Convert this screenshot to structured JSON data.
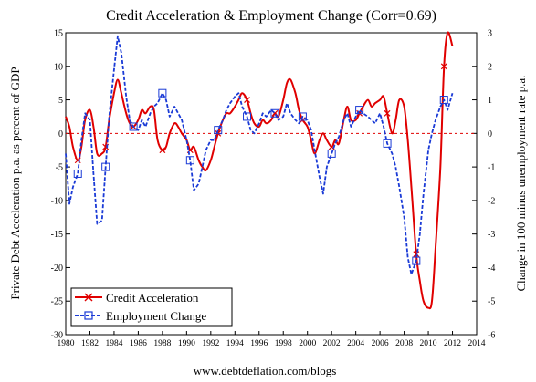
{
  "chart_data": {
    "type": "line",
    "title": "Credit Acceleration & Employment Change (Corr=0.69)",
    "ylabel_left": "Private Debt Acceleration p.a. as percent of GDP",
    "ylabel_right": "Change in 100 minus unemployment rate p.a.",
    "footer": "www.debtdeflation.com/blogs",
    "xlim": [
      1980,
      2014
    ],
    "ylim_left": [
      -30,
      15
    ],
    "ylim_right": [
      -6,
      3
    ],
    "x_ticks": [
      "1980",
      "1982",
      "1984",
      "1986",
      "1988",
      "1990",
      "1992",
      "1994",
      "1996",
      "1998",
      "2000",
      "2002",
      "2004",
      "2006",
      "2008",
      "2010",
      "2012",
      "2014"
    ],
    "y_ticks_left": [
      "15",
      "10",
      "5",
      "0",
      "-5",
      "-10",
      "-15",
      "-20",
      "-25",
      "-30"
    ],
    "y_ticks_right": [
      "3",
      "2",
      "1",
      "0",
      "-1",
      "-2",
      "-3",
      "-4",
      "-5",
      "-6"
    ],
    "grid": false,
    "zero_line": true,
    "legend_position": "bottom-left",
    "series": [
      {
        "name": "Credit Acceleration",
        "axis": "left",
        "color": "#e00000",
        "marker": "x",
        "x": [
          1980.0,
          1980.3,
          1980.6,
          1981.0,
          1981.3,
          1981.6,
          1982.0,
          1982.3,
          1982.6,
          1983.0,
          1983.3,
          1983.6,
          1984.0,
          1984.3,
          1984.6,
          1985.0,
          1985.3,
          1985.6,
          1986.0,
          1986.3,
          1986.6,
          1987.0,
          1987.3,
          1987.6,
          1988.0,
          1988.3,
          1988.6,
          1989.0,
          1989.3,
          1989.6,
          1990.0,
          1990.3,
          1990.6,
          1991.0,
          1991.3,
          1991.6,
          1992.0,
          1992.3,
          1992.6,
          1993.0,
          1993.3,
          1993.6,
          1994.0,
          1994.3,
          1994.6,
          1995.0,
          1995.3,
          1995.6,
          1996.0,
          1996.3,
          1996.6,
          1997.0,
          1997.3,
          1997.6,
          1998.0,
          1998.3,
          1998.6,
          1999.0,
          1999.3,
          1999.6,
          2000.0,
          2000.3,
          2000.6,
          2001.0,
          2001.3,
          2001.6,
          2002.0,
          2002.3,
          2002.6,
          2003.0,
          2003.3,
          2003.6,
          2004.0,
          2004.3,
          2004.6,
          2005.0,
          2005.3,
          2005.6,
          2006.0,
          2006.3,
          2006.6,
          2007.0,
          2007.3,
          2007.6,
          2008.0,
          2008.3,
          2008.6,
          2009.0,
          2009.3,
          2009.6,
          2010.0,
          2010.3,
          2010.6,
          2011.0,
          2011.3,
          2011.6,
          2012.0
        ],
        "y": [
          2.5,
          1.0,
          -2.0,
          -4.0,
          -2.0,
          2.0,
          3.5,
          1.0,
          -3.0,
          -3.0,
          -2.0,
          2.0,
          6.0,
          8.0,
          6.0,
          3.0,
          1.5,
          1.0,
          2.0,
          3.5,
          3.0,
          4.0,
          3.5,
          -1.0,
          -2.5,
          -2.0,
          0.0,
          1.5,
          1.0,
          0.0,
          -1.0,
          -2.5,
          -2.0,
          -4.0,
          -5.0,
          -5.5,
          -4.0,
          -2.0,
          0.0,
          2.0,
          3.0,
          3.0,
          4.0,
          5.0,
          6.0,
          5.0,
          3.0,
          1.5,
          1.0,
          2.0,
          1.5,
          2.0,
          3.0,
          2.5,
          5.0,
          7.5,
          8.0,
          6.0,
          3.5,
          2.0,
          1.0,
          -1.0,
          -3.0,
          -1.0,
          0.0,
          -1.0,
          -2.0,
          -1.0,
          -1.5,
          2.0,
          4.0,
          2.0,
          2.0,
          3.0,
          4.0,
          5.0,
          4.0,
          4.5,
          5.0,
          5.5,
          3.0,
          0.0,
          2.0,
          5.0,
          4.0,
          -1.0,
          -8.0,
          -18.0,
          -22.0,
          -25.0,
          -26.0,
          -25.0,
          -17.0,
          -5.0,
          10.0,
          15.0,
          13.0
        ],
        "smooth": true
      },
      {
        "name": "Employment Change",
        "axis": "right",
        "color": "#1a3ad6",
        "marker": "square",
        "x": [
          1980.0,
          1980.3,
          1980.6,
          1981.0,
          1981.3,
          1981.6,
          1982.0,
          1982.3,
          1982.6,
          1983.0,
          1983.3,
          1983.6,
          1984.0,
          1984.3,
          1984.6,
          1985.0,
          1985.3,
          1985.6,
          1986.0,
          1986.3,
          1986.6,
          1987.0,
          1987.3,
          1987.6,
          1988.0,
          1988.3,
          1988.6,
          1989.0,
          1989.3,
          1989.6,
          1990.0,
          1990.3,
          1990.6,
          1991.0,
          1991.3,
          1991.6,
          1992.0,
          1992.3,
          1992.6,
          1993.0,
          1993.3,
          1993.6,
          1994.0,
          1994.3,
          1994.6,
          1995.0,
          1995.3,
          1995.6,
          1996.0,
          1996.3,
          1996.6,
          1997.0,
          1997.3,
          1997.6,
          1998.0,
          1998.3,
          1998.6,
          1999.0,
          1999.3,
          1999.6,
          2000.0,
          2000.3,
          2000.6,
          2001.0,
          2001.3,
          2001.6,
          2002.0,
          2002.3,
          2002.6,
          2003.0,
          2003.3,
          2003.6,
          2004.0,
          2004.3,
          2004.6,
          2005.0,
          2005.3,
          2005.6,
          2006.0,
          2006.3,
          2006.6,
          2007.0,
          2007.3,
          2007.6,
          2008.0,
          2008.3,
          2008.6,
          2009.0,
          2009.3,
          2009.6,
          2010.0,
          2010.3,
          2010.6,
          2011.0,
          2011.3,
          2011.6,
          2012.0
        ],
        "y": [
          -0.6,
          -2.1,
          -1.6,
          -1.2,
          -0.2,
          0.6,
          0.4,
          -1.2,
          -2.7,
          -2.6,
          -1.0,
          0.5,
          1.9,
          2.9,
          2.4,
          1.1,
          0.4,
          0.2,
          0.1,
          0.4,
          0.2,
          0.6,
          0.8,
          0.9,
          1.2,
          1.0,
          0.5,
          0.8,
          0.6,
          0.4,
          -0.2,
          -0.8,
          -1.7,
          -1.5,
          -1.0,
          -0.5,
          -0.2,
          -0.2,
          0.1,
          0.4,
          0.7,
          0.9,
          1.1,
          1.2,
          0.8,
          0.5,
          0.1,
          0.0,
          0.3,
          0.6,
          0.5,
          0.7,
          0.6,
          0.4,
          0.5,
          0.9,
          0.6,
          0.4,
          0.3,
          0.5,
          0.4,
          0.1,
          -0.5,
          -1.3,
          -1.8,
          -1.0,
          -0.6,
          -0.3,
          -0.1,
          0.4,
          0.6,
          0.2,
          0.5,
          0.7,
          0.6,
          0.5,
          0.4,
          0.3,
          0.6,
          0.2,
          -0.3,
          -0.6,
          -1.0,
          -1.6,
          -2.5,
          -3.7,
          -4.2,
          -3.8,
          -3.0,
          -1.8,
          -0.5,
          0.0,
          0.4,
          0.8,
          1.0,
          0.7,
          1.2
        ],
        "smooth": false
      }
    ]
  }
}
